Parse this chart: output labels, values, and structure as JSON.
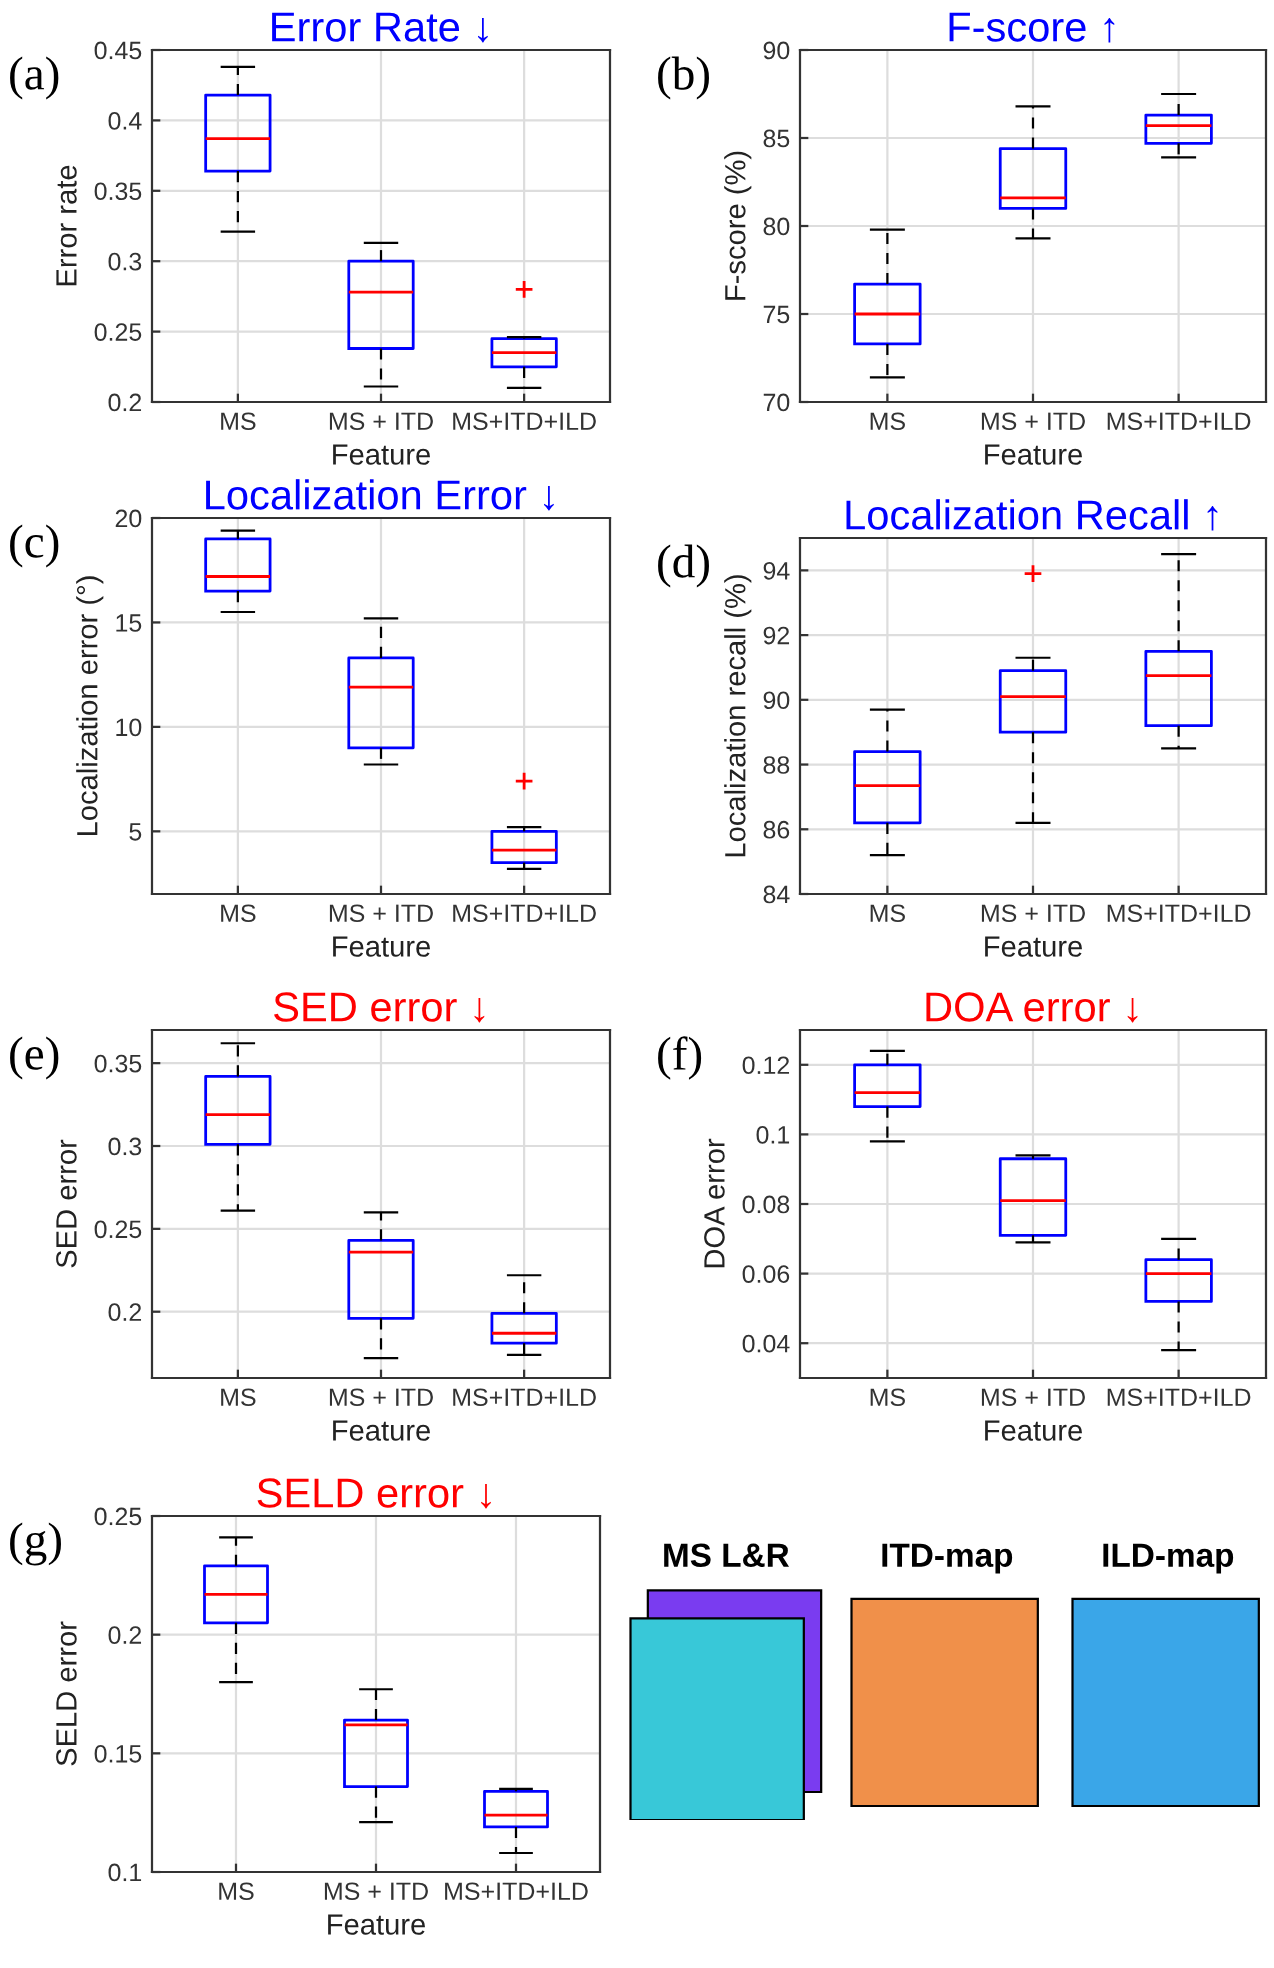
{
  "chart_data": [
    {
      "type": "box",
      "title": "Error Rate ↓",
      "xlabel": "Feature",
      "ylabel": "Error rate",
      "annotations": [
        "(a)"
      ],
      "categories": [
        "MS",
        "MS + ITD",
        "MS+ITD+ILD"
      ],
      "ylim": [
        0.2,
        0.45
      ],
      "yticks": [
        0.2,
        0.25,
        0.3,
        0.35,
        0.4,
        0.45
      ],
      "grid": true,
      "series": [
        {
          "color": "#0000ff",
          "boxes": [
            {
              "low": 0.321,
              "q1": 0.364,
              "median": 0.387,
              "q3": 0.418,
              "high": 0.438
            },
            {
              "low": 0.211,
              "q1": 0.238,
              "median": 0.278,
              "q3": 0.3,
              "high": 0.313
            },
            {
              "low": 0.21,
              "q1": 0.225,
              "median": 0.235,
              "q3": 0.245,
              "high": 0.246,
              "outliers": [
                0.28
              ]
            }
          ]
        }
      ]
    },
    {
      "type": "box",
      "title": "F-score ↑",
      "xlabel": "Feature",
      "ylabel": "F-score (%)",
      "annotations": [
        "(b)"
      ],
      "categories": [
        "MS",
        "MS + ITD",
        "MS+ITD+ILD"
      ],
      "ylim": [
        70,
        90
      ],
      "yticks": [
        70,
        75,
        80,
        85,
        90
      ],
      "grid": true,
      "series": [
        {
          "color": "#0000ff",
          "boxes": [
            {
              "low": 71.4,
              "q1": 73.3,
              "median": 75.0,
              "q3": 76.7,
              "high": 79.8
            },
            {
              "low": 79.3,
              "q1": 81.0,
              "median": 81.6,
              "q3": 84.4,
              "high": 86.8
            },
            {
              "low": 83.9,
              "q1": 84.7,
              "median": 85.7,
              "q3": 86.3,
              "high": 87.5
            }
          ]
        }
      ]
    },
    {
      "type": "box",
      "title": "Localization Error ↓",
      "xlabel": "Feature",
      "ylabel": "Localization error (°)",
      "annotations": [
        "(c)"
      ],
      "categories": [
        "MS",
        "MS + ITD",
        "MS+ITD+ILD"
      ],
      "ylim": [
        2,
        20
      ],
      "yticks": [
        5,
        10,
        15,
        20
      ],
      "grid": true,
      "series": [
        {
          "color": "#0000ff",
          "boxes": [
            {
              "low": 15.5,
              "q1": 16.5,
              "median": 17.2,
              "q3": 19.0,
              "high": 19.4
            },
            {
              "low": 8.2,
              "q1": 9.0,
              "median": 11.9,
              "q3": 13.3,
              "high": 15.2
            },
            {
              "low": 3.2,
              "q1": 3.5,
              "median": 4.1,
              "q3": 5.0,
              "high": 5.2,
              "outliers": [
                7.4
              ]
            }
          ]
        }
      ]
    },
    {
      "type": "box",
      "title": "Localization Recall ↑",
      "xlabel": "Feature",
      "ylabel": "Localization recall (%)",
      "annotations": [
        "(d)"
      ],
      "categories": [
        "MS",
        "MS + ITD",
        "MS+ITD+ILD"
      ],
      "ylim": [
        84,
        95
      ],
      "yticks": [
        84,
        86,
        88,
        90,
        92,
        94
      ],
      "grid": true,
      "series": [
        {
          "color": "#0000ff",
          "boxes": [
            {
              "low": 85.2,
              "q1": 86.2,
              "median": 87.35,
              "q3": 88.4,
              "high": 89.7
            },
            {
              "low": 86.2,
              "q1": 89.0,
              "median": 90.1,
              "q3": 90.9,
              "high": 91.3,
              "outliers": [
                93.9
              ]
            },
            {
              "low": 88.5,
              "q1": 89.2,
              "median": 90.75,
              "q3": 91.5,
              "high": 94.5
            }
          ]
        }
      ]
    },
    {
      "type": "box",
      "title": "SED error ↓",
      "xlabel": "Feature",
      "ylabel": "SED error",
      "annotations": [
        "(e)"
      ],
      "categories": [
        "MS",
        "MS + ITD",
        "MS+ITD+ILD"
      ],
      "ylim": [
        0.16,
        0.37
      ],
      "yticks": [
        0.2,
        0.25,
        0.3,
        0.35
      ],
      "grid": true,
      "series": [
        {
          "color": "#0000ff",
          "boxes": [
            {
              "low": 0.261,
              "q1": 0.301,
              "median": 0.319,
              "q3": 0.342,
              "high": 0.362
            },
            {
              "low": 0.172,
              "q1": 0.196,
              "median": 0.236,
              "q3": 0.243,
              "high": 0.26
            },
            {
              "low": 0.174,
              "q1": 0.181,
              "median": 0.187,
              "q3": 0.199,
              "high": 0.222
            }
          ]
        }
      ]
    },
    {
      "type": "box",
      "title": "DOA error ↓",
      "xlabel": "Feature",
      "ylabel": "DOA error",
      "annotations": [
        "(f)"
      ],
      "categories": [
        "MS",
        "MS + ITD",
        "MS+ITD+ILD"
      ],
      "ylim": [
        0.03,
        0.13
      ],
      "yticks": [
        0.04,
        0.06,
        0.08,
        0.1,
        0.12
      ],
      "grid": true,
      "series": [
        {
          "color": "#0000ff",
          "boxes": [
            {
              "low": 0.098,
              "q1": 0.108,
              "median": 0.112,
              "q3": 0.12,
              "high": 0.124
            },
            {
              "low": 0.069,
              "q1": 0.071,
              "median": 0.081,
              "q3": 0.093,
              "high": 0.094
            },
            {
              "low": 0.038,
              "q1": 0.052,
              "median": 0.06,
              "q3": 0.064,
              "high": 0.07
            }
          ]
        }
      ]
    },
    {
      "type": "box",
      "title": "SELD error ↓",
      "xlabel": "Feature",
      "ylabel": "SELD error",
      "annotations": [
        "(g)"
      ],
      "categories": [
        "MS",
        "MS + ITD",
        "MS+ITD+ILD"
      ],
      "ylim": [
        0.1,
        0.25
      ],
      "yticks": [
        0.1,
        0.15,
        0.2,
        0.25
      ],
      "grid": true,
      "series": [
        {
          "color": "#0000ff",
          "boxes": [
            {
              "low": 0.18,
              "q1": 0.205,
              "median": 0.217,
              "q3": 0.229,
              "high": 0.241
            },
            {
              "low": 0.121,
              "q1": 0.136,
              "median": 0.162,
              "q3": 0.164,
              "high": 0.177
            },
            {
              "low": 0.108,
              "q1": 0.119,
              "median": 0.124,
              "q3": 0.134,
              "high": 0.135
            }
          ]
        }
      ]
    },
    {
      "type": "other",
      "annotations": [
        "MS L&R",
        "ITD-map",
        "ILD-map"
      ]
    }
  ]
}
